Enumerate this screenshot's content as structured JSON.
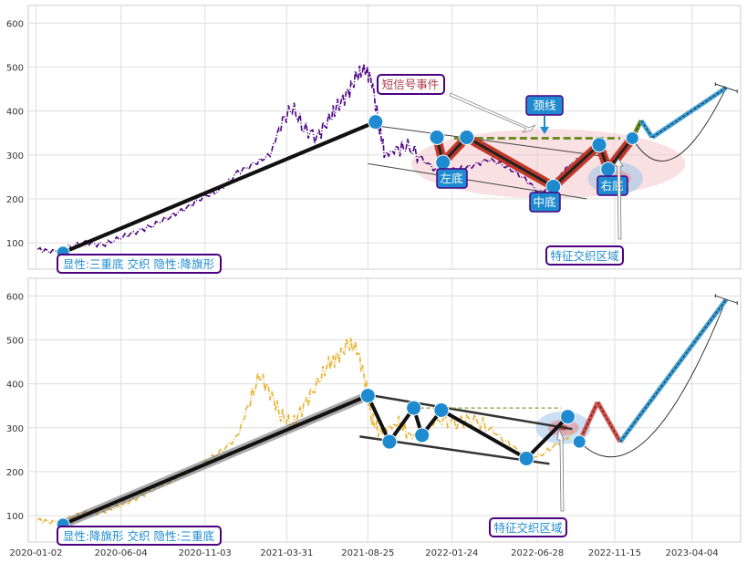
{
  "chart_data": [
    {
      "type": "line",
      "ylim": [
        40,
        640
      ],
      "yticks": [
        100,
        200,
        300,
        400,
        500,
        600
      ],
      "xlim": [
        "2019-12-19",
        "2023-07-01"
      ],
      "grid": true,
      "series": [
        {
          "color": "#4b0082",
          "style": "dashdot",
          "x": [
            "2020-01-05",
            "2020-02-01",
            "2020-03-01",
            "2020-04-01",
            "2020-05-01",
            "2020-06-01",
            "2020-07-01",
            "2020-08-01",
            "2020-09-01",
            "2020-10-01",
            "2020-11-01",
            "2020-12-01",
            "2021-01-01",
            "2021-02-01",
            "2021-03-01",
            "2021-03-20",
            "2021-04-10",
            "2021-05-01",
            "2021-05-25",
            "2021-06-15",
            "2021-07-01",
            "2021-07-20",
            "2021-08-05",
            "2021-08-20",
            "2021-09-01",
            "2021-09-15",
            "2021-09-25",
            "2021-10-15",
            "2021-11-05",
            "2021-12-01",
            "2022-01-01",
            "2022-02-01",
            "2022-03-01",
            "2022-04-01",
            "2022-05-01",
            "2022-06-01",
            "2022-07-01",
            "2022-08-01",
            "2022-08-20",
            "2022-09-10",
            "2022-10-01"
          ],
          "values": [
            85,
            80,
            90,
            100,
            95,
            110,
            125,
            140,
            160,
            180,
            205,
            220,
            260,
            280,
            300,
            370,
            410,
            360,
            340,
            380,
            410,
            440,
            480,
            495,
            470,
            360,
            300,
            310,
            320,
            290,
            260,
            265,
            275,
            290,
            275,
            250,
            215,
            235,
            270,
            290,
            305
          ]
        }
      ],
      "markers": [
        {
          "x": "2020-02-20",
          "y": 78
        },
        {
          "x": "2021-09-08",
          "y": 375
        },
        {
          "x": "2021-12-28",
          "y": 340
        },
        {
          "x": "2022-01-08",
          "y": 283
        },
        {
          "x": "2022-02-20",
          "y": 340
        },
        {
          "x": "2022-07-27",
          "y": 228
        },
        {
          "x": "2022-10-18",
          "y": 323
        },
        {
          "x": "2022-11-03",
          "y": 267
        },
        {
          "x": "2022-12-17",
          "y": 338
        }
      ],
      "trend_line": [
        {
          "x": "2020-02-20",
          "y": 78
        },
        {
          "x": "2021-09-08",
          "y": 375
        }
      ],
      "w_pattern": [
        {
          "x": "2021-12-28",
          "y": 340
        },
        {
          "x": "2022-01-08",
          "y": 283
        },
        {
          "x": "2022-02-20",
          "y": 340
        },
        {
          "x": "2022-07-27",
          "y": 228
        },
        {
          "x": "2022-10-18",
          "y": 323
        },
        {
          "x": "2022-11-03",
          "y": 267
        },
        {
          "x": "2022-12-17",
          "y": 338
        }
      ],
      "channel_upper": [
        {
          "x": "2021-09-05",
          "y": 367
        },
        {
          "x": "2022-10-25",
          "y": 297
        }
      ],
      "channel_lower": [
        {
          "x": "2021-08-25",
          "y": 280
        },
        {
          "x": "2022-09-25",
          "y": 200
        }
      ],
      "neckline": [
        {
          "x": "2022-01-28",
          "y": 338
        },
        {
          "x": "2022-11-25",
          "y": 338
        }
      ],
      "projection": [
        {
          "x": "2022-12-17",
          "y": 338
        },
        {
          "x": "2023-01-02",
          "y": 378
        },
        {
          "x": "2023-01-22",
          "y": 340
        },
        {
          "x": "2023-06-05",
          "y": 453
        }
      ],
      "annotations": {
        "bottom_left_box": "显性:三重底 交织 隐性:降旗形",
        "signal_box": "短信号事件",
        "neckline_box": "颈线",
        "left_bottom": "左底",
        "middle_bottom": "中底",
        "right_bottom": "右底",
        "feature_box": "特征交织区域"
      }
    },
    {
      "type": "line",
      "ylim": [
        40,
        640
      ],
      "yticks": [
        100,
        200,
        300,
        400,
        500,
        600
      ],
      "xlim": [
        "2019-12-19",
        "2023-07-01"
      ],
      "xticks": [
        "2020-01-02",
        "2020-06-04",
        "2020-11-03",
        "2021-03-31",
        "2021-08-25",
        "2022-01-24",
        "2022-06-28",
        "2022-11-15",
        "2023-04-04"
      ],
      "grid": true,
      "series": [
        {
          "color": "#e8b22e",
          "style": "dashdot",
          "x": [
            "2020-01-05",
            "2020-02-01",
            "2020-03-01",
            "2020-04-01",
            "2020-05-01",
            "2020-06-01",
            "2020-07-01",
            "2020-08-01",
            "2020-09-01",
            "2020-10-01",
            "2020-11-01",
            "2020-12-01",
            "2021-01-01",
            "2021-01-20",
            "2021-02-10",
            "2021-03-01",
            "2021-03-20",
            "2021-04-10",
            "2021-05-01",
            "2021-05-25",
            "2021-06-15",
            "2021-07-01",
            "2021-07-20",
            "2021-08-05",
            "2021-08-20",
            "2021-09-01",
            "2021-09-15",
            "2021-10-01",
            "2021-10-20",
            "2021-11-10",
            "2021-12-01",
            "2022-01-01",
            "2022-02-01",
            "2022-03-01",
            "2022-04-01",
            "2022-05-01",
            "2022-06-01",
            "2022-07-01",
            "2022-08-01",
            "2022-09-01"
          ],
          "values": [
            90,
            85,
            95,
            105,
            110,
            120,
            140,
            160,
            180,
            200,
            220,
            245,
            280,
            350,
            420,
            380,
            330,
            305,
            350,
            400,
            445,
            460,
            490,
            480,
            410,
            320,
            290,
            300,
            310,
            280,
            290,
            320,
            310,
            320,
            300,
            270,
            240,
            235,
            260,
            290
          ]
        }
      ],
      "markers": [
        {
          "x": "2020-02-20",
          "y": 80
        },
        {
          "x": "2021-08-25",
          "y": 373
        },
        {
          "x": "2021-10-03",
          "y": 268
        },
        {
          "x": "2021-11-16",
          "y": 345
        },
        {
          "x": "2021-12-01",
          "y": 283
        },
        {
          "x": "2022-01-05",
          "y": 340
        },
        {
          "x": "2022-06-08",
          "y": 230
        },
        {
          "x": "2022-08-22",
          "y": 325
        },
        {
          "x": "2022-09-12",
          "y": 268
        }
      ],
      "trend_line": [
        {
          "x": "2020-02-20",
          "y": 80
        },
        {
          "x": "2021-08-25",
          "y": 373
        }
      ],
      "flag_pattern": [
        {
          "x": "2021-08-25",
          "y": 373
        },
        {
          "x": "2021-10-03",
          "y": 268
        },
        {
          "x": "2021-11-16",
          "y": 345
        },
        {
          "x": "2021-12-01",
          "y": 283
        },
        {
          "x": "2022-01-05",
          "y": 340
        },
        {
          "x": "2022-06-08",
          "y": 230
        },
        {
          "x": "2022-08-22",
          "y": 325
        }
      ],
      "channel_upper": [
        {
          "x": "2021-08-25",
          "y": 375
        },
        {
          "x": "2022-08-30",
          "y": 297
        }
      ],
      "channel_lower": [
        {
          "x": "2021-08-10",
          "y": 280
        },
        {
          "x": "2022-07-20",
          "y": 218
        }
      ],
      "neckline": [
        {
          "x": "2021-11-16",
          "y": 345
        },
        {
          "x": "2022-08-10",
          "y": 345
        }
      ],
      "projection": [
        {
          "x": "2022-09-12",
          "y": 268
        },
        {
          "x": "2022-10-15",
          "y": 358
        },
        {
          "x": "2022-11-25",
          "y": 268
        },
        {
          "x": "2023-06-05",
          "y": 592
        }
      ],
      "annotations": {
        "bottom_left_box": "显性:降旗形 交织 隐性:三重底",
        "feature_box": "特征交织区域"
      }
    }
  ]
}
